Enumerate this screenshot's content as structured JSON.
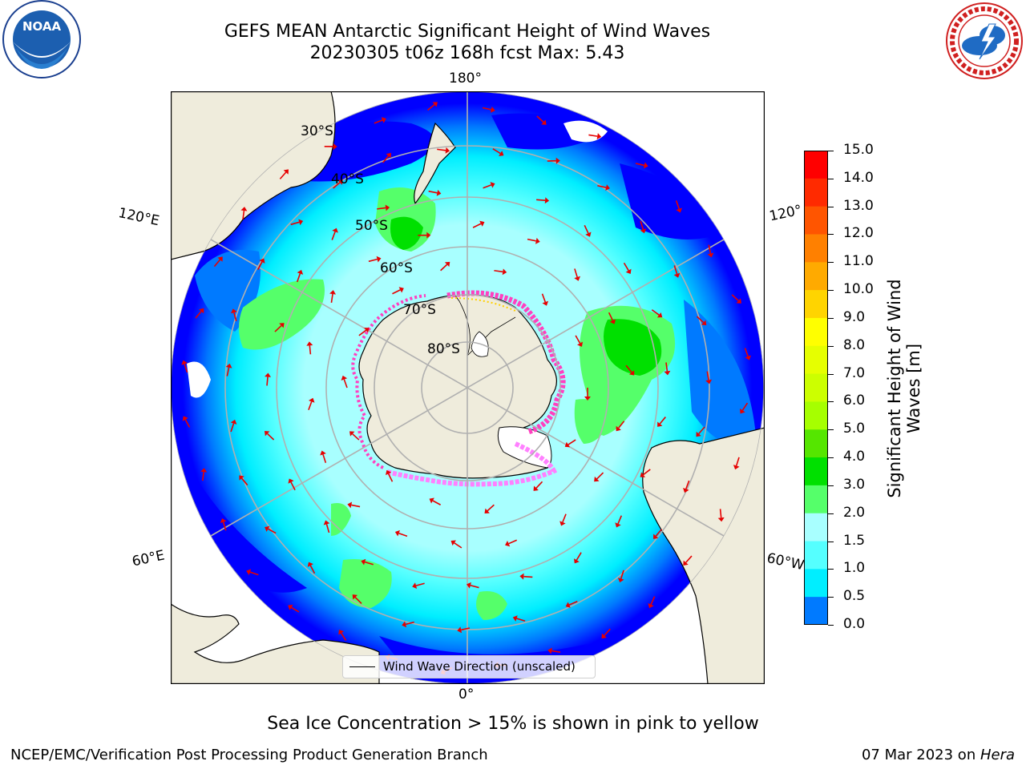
{
  "header": {
    "title_line1": "GEFS MEAN Antarctic Significant Height of Wind Waves",
    "title_line2": "20230305 t06z 168h fcst   Max: 5.43"
  },
  "logos": {
    "left": {
      "name": "NOAA",
      "ring_text": "NATIONAL OCEANIC AND ATMOSPHERIC ADMINISTRATION · U.S. DEPARTMENT OF COMMERCE"
    },
    "right": {
      "name": "NATIONAL WEATHER SERVICE"
    }
  },
  "map": {
    "projection": "South Polar Stereographic",
    "lon_labels": {
      "top": "180°",
      "bottom": "0°",
      "left_upper": "120°E",
      "left_lower": "60°E",
      "right_upper": "120°",
      "right_lower": "60°W"
    },
    "lat_labels": [
      "30°S",
      "40°S",
      "50°S",
      "60°S",
      "70°S",
      "80°S"
    ],
    "legend_label": "Wind Wave Direction (unscaled)",
    "arrow_color": "#e60000",
    "ice_colors": [
      "#ff40c0",
      "#ff80ff",
      "#ffd000"
    ],
    "land_color": "#efecdc",
    "ocean_colors": {
      "low": "#0000ff",
      "0.5-1.0": "#007aff",
      "1.0-1.5": "#00eeff",
      "1.5-2.0": "#55ffff",
      "2.0-3.0": "#a8ffff",
      "3.0-4.0": "#55ff6a",
      "4.0-5.0": "#00e000"
    }
  },
  "colorbar": {
    "label": "Significant Height of Wind Waves [m]",
    "label_line1": "Significant Height of Wind",
    "label_line2": "Waves [m]",
    "ticks": [
      "15.0",
      "14.0",
      "13.0",
      "12.0",
      "11.0",
      "10.0",
      "9.0",
      "8.0",
      "7.0",
      "6.0",
      "5.0",
      "4.0",
      "3.0",
      "2.0",
      "1.5",
      "1.0",
      "0.5",
      "0.0"
    ],
    "colors": [
      "#ff0000",
      "#ff2a00",
      "#ff5500",
      "#ff8000",
      "#ffaa00",
      "#ffd400",
      "#ffff00",
      "#e6ff00",
      "#ccff00",
      "#a6ff00",
      "#55e600",
      "#00e000",
      "#55ff6a",
      "#a8ffff",
      "#55ffff",
      "#00eeff",
      "#007aff",
      "#0000ff"
    ]
  },
  "footer": {
    "caption": "Sea Ice Concentration > 15% is shown in pink to yellow",
    "left": "NCEP/EMC/Verification Post Processing Product Generation Branch",
    "right_date": "07 Mar 2023 on ",
    "right_machine": "Hera"
  }
}
